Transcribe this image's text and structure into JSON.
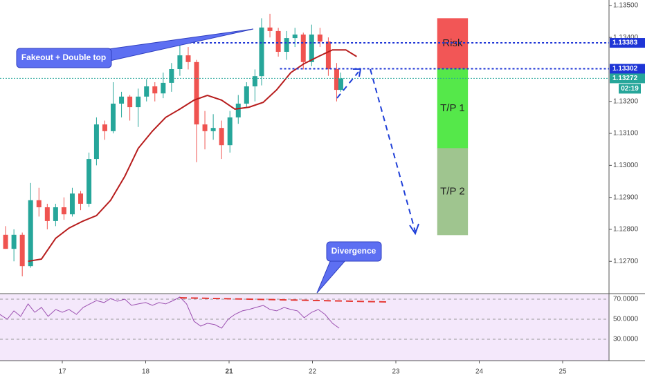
{
  "chart_data": {
    "type": "candlestick",
    "xlim": [
      0.253,
      7.556
    ],
    "xticks": [
      {
        "value": 1,
        "label": "17"
      },
      {
        "value": 2,
        "label": "18"
      },
      {
        "value": 3,
        "label": "21"
      },
      {
        "value": 4,
        "label": "22"
      },
      {
        "value": 5,
        "label": "23"
      },
      {
        "value": 6,
        "label": "24"
      },
      {
        "value": 7,
        "label": "25"
      }
    ],
    "ylim": [
      1.12599,
      1.13517
    ],
    "yticks": [
      {
        "value": 1.135,
        "label": "1.13500"
      },
      {
        "value": 1.134,
        "label": "1.13400"
      },
      {
        "value": 1.132,
        "label": "1.13200"
      },
      {
        "value": 1.131,
        "label": "1.13100"
      },
      {
        "value": 1.13,
        "label": "1.13000"
      },
      {
        "value": 1.129,
        "label": "1.12900"
      },
      {
        "value": 1.128,
        "label": "1.12800"
      },
      {
        "value": 1.127,
        "label": "1.12700"
      }
    ],
    "up_color": "#26a69a",
    "down_color": "#ef5350",
    "candles": {
      "x": [
        0.32,
        0.42,
        0.52,
        0.62,
        0.72,
        0.82,
        0.92,
        1.02,
        1.12,
        1.22,
        1.32,
        1.41,
        1.51,
        1.61,
        1.71,
        1.81,
        1.91,
        2.01,
        2.11,
        2.21,
        2.31,
        2.41,
        2.51,
        2.61,
        2.71,
        2.81,
        2.91,
        3.01,
        3.11,
        3.21,
        3.31,
        3.39,
        3.49,
        3.59,
        3.69,
        3.79,
        3.89,
        3.99,
        4.09,
        4.19,
        4.29,
        4.34
      ],
      "open": [
        1.12783,
        1.12739,
        1.12783,
        1.12685,
        1.12891,
        1.12869,
        1.12826,
        1.12869,
        1.12847,
        1.12912,
        1.1288,
        1.1302,
        1.13128,
        1.13107,
        1.13193,
        1.13215,
        1.13182,
        1.13215,
        1.13247,
        1.13225,
        1.13258,
        1.13301,
        1.13344,
        1.13323,
        1.13128,
        1.13107,
        1.13117,
        1.13063,
        1.1315,
        1.13193,
        1.13247,
        1.13279,
        1.13431,
        1.1342,
        1.13355,
        1.13398,
        1.13409,
        1.13323,
        1.13409,
        1.13387,
        1.13301,
        1.13236
      ],
      "high": [
        1.1281,
        1.128,
        1.1279,
        1.12945,
        1.1293,
        1.1288,
        1.1288,
        1.129,
        1.1293,
        1.1292,
        1.1304,
        1.1315,
        1.1314,
        1.1326,
        1.1323,
        1.1322,
        1.1324,
        1.1327,
        1.1326,
        1.1329,
        1.1332,
        1.1339,
        1.1337,
        1.1333,
        1.1317,
        1.1316,
        1.1314,
        1.1317,
        1.1322,
        1.1326,
        1.133,
        1.1346,
        1.13474,
        1.1343,
        1.1342,
        1.1343,
        1.13415,
        1.1344,
        1.1343,
        1.134,
        1.1332,
        1.1329
      ],
      "low": [
        1.12739,
        1.127,
        1.12653,
        1.1268,
        1.1284,
        1.128,
        1.1281,
        1.1283,
        1.1284,
        1.1286,
        1.1287,
        1.13,
        1.1308,
        1.131,
        1.1315,
        1.1314,
        1.1312,
        1.132,
        1.132,
        1.1321,
        1.1323,
        1.1328,
        1.133,
        1.1301,
        1.1305,
        1.1308,
        1.1302,
        1.1304,
        1.1313,
        1.1318,
        1.132,
        1.1325,
        1.134,
        1.1334,
        1.1333,
        1.1337,
        1.133,
        1.1331,
        1.1337,
        1.1328,
        1.132,
        1.1323
      ],
      "close": [
        1.12739,
        1.12783,
        1.12685,
        1.12891,
        1.12869,
        1.12826,
        1.12869,
        1.12847,
        1.12912,
        1.1288,
        1.1302,
        1.13128,
        1.13107,
        1.13193,
        1.13215,
        1.13182,
        1.13215,
        1.13247,
        1.13225,
        1.13258,
        1.13301,
        1.13344,
        1.13323,
        1.13128,
        1.13107,
        1.13117,
        1.13063,
        1.1315,
        1.13193,
        1.13247,
        1.13279,
        1.13431,
        1.1342,
        1.13355,
        1.13398,
        1.13409,
        1.13323,
        1.13409,
        1.13387,
        1.13301,
        1.13236,
        1.13272
      ]
    },
    "moving_average": {
      "color": "#b71c1c",
      "x": [
        0.59,
        0.75,
        0.92,
        1.08,
        1.25,
        1.41,
        1.58,
        1.75,
        1.91,
        2.08,
        2.24,
        2.41,
        2.58,
        2.74,
        2.91,
        3.07,
        3.24,
        3.41,
        3.57,
        3.74,
        3.9,
        4.07,
        4.24,
        4.4,
        4.53
      ],
      "values": [
        1.127,
        1.12707,
        1.12772,
        1.12804,
        1.12826,
        1.12843,
        1.12891,
        1.12966,
        1.13053,
        1.13107,
        1.1315,
        1.13176,
        1.13204,
        1.13219,
        1.13204,
        1.13176,
        1.13182,
        1.13197,
        1.13236,
        1.1329,
        1.13318,
        1.1334,
        1.13361,
        1.13361,
        1.1334
      ]
    },
    "levels": [
      {
        "value": 1.13383,
        "start": 2.37,
        "color": "#1e35d6"
      },
      {
        "value": 1.13302,
        "start": 3.61,
        "color": "#1e35d6"
      },
      {
        "value": 1.13272,
        "color": "#26a69a"
      }
    ],
    "countdown": "02:19",
    "zones": {
      "xrange": [
        5.5,
        5.86
      ],
      "items": [
        {
          "label": "Risk",
          "top": 1.13459,
          "bottom": 1.13302,
          "color": "#f25656"
        },
        {
          "label": "T/P 1",
          "top": 1.13302,
          "bottom": 1.13053,
          "color": "#55e84a"
        },
        {
          "label": "T/P 2",
          "top": 1.13053,
          "bottom": 1.12783,
          "color": "#9fc58f"
        }
      ]
    },
    "annotations": [
      "Fakeout + Double top",
      "Divergence"
    ],
    "rsi": {
      "color": "#9b4fb0",
      "ylim": [
        8.6,
        75.5
      ],
      "yticks": [
        {
          "value": 70,
          "label": "70.0000"
        },
        {
          "value": 50,
          "label": "50.0000"
        },
        {
          "value": 30,
          "label": "30.0000"
        }
      ],
      "x": [
        0.25,
        0.34,
        0.42,
        0.5,
        0.59,
        0.67,
        0.75,
        0.83,
        0.92,
        1.0,
        1.08,
        1.17,
        1.25,
        1.33,
        1.41,
        1.5,
        1.58,
        1.66,
        1.75,
        1.83,
        1.91,
        2.0,
        2.08,
        2.16,
        2.24,
        2.33,
        2.41,
        2.49,
        2.58,
        2.66,
        2.74,
        2.83,
        2.91,
        2.99,
        3.07,
        3.16,
        3.24,
        3.32,
        3.41,
        3.49,
        3.57,
        3.66,
        3.74,
        3.82,
        3.9,
        3.99,
        4.07,
        4.15,
        4.24,
        4.32
      ],
      "values": [
        54.8,
        50.0,
        58.3,
        52.8,
        65.2,
        56.9,
        61.7,
        52.8,
        59.7,
        56.9,
        59.7,
        54.8,
        61.7,
        65.2,
        68.6,
        66.6,
        70.7,
        67.9,
        70.0,
        63.8,
        65.2,
        66.6,
        63.8,
        66.6,
        65.2,
        68.6,
        72.1,
        65.2,
        47.9,
        43.1,
        45.9,
        44.5,
        41.0,
        50.0,
        54.8,
        58.3,
        59.7,
        61.7,
        63.8,
        59.7,
        58.3,
        61.7,
        59.7,
        58.3,
        51.4,
        56.9,
        59.7,
        54.8,
        45.9,
        41.0
      ]
    }
  }
}
